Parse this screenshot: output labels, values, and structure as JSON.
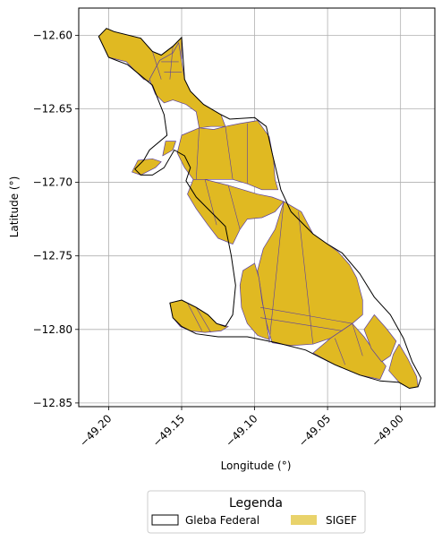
{
  "chart_data": {
    "type": "map",
    "xlabel": "Longitude (°)",
    "ylabel": "Latitude (°)",
    "xlim": [
      -49.2205,
      -48.9765
    ],
    "ylim": [
      -12.8525,
      -12.5815
    ],
    "x_ticks": [
      -49.2,
      -49.15,
      -49.1,
      -49.05,
      -49.0
    ],
    "x_tick_labels": [
      "−49.20",
      "−49.15",
      "−49.10",
      "−49.05",
      "−49.00"
    ],
    "y_ticks": [
      -12.6,
      -12.65,
      -12.7,
      -12.75,
      -12.8,
      -12.85
    ],
    "y_tick_labels": [
      "−12.60",
      "−12.65",
      "−12.70",
      "−12.75",
      "−12.80",
      "−12.85"
    ],
    "grid": true,
    "legend": {
      "title": "Legenda",
      "position": "bottom-center",
      "entries": [
        {
          "name": "Gleba Federal",
          "style": "outline"
        },
        {
          "name": "SIGEF",
          "style": "fill"
        }
      ]
    },
    "colors": {
      "sigef_fill": "#e0b922",
      "sigef_edge": "#5a3fa0",
      "legend_sigef_fill": "#e9d36b",
      "gleba_edge": "#000000",
      "grid": "#b0b0b0"
    },
    "gleba_outline": [
      [
        -49.2068,
        -12.6008
      ],
      [
        -49.2015,
        -12.5953
      ],
      [
        -49.1963,
        -12.5975
      ],
      [
        -49.178,
        -12.602
      ],
      [
        -49.17,
        -12.611
      ],
      [
        -49.164,
        -12.6135
      ],
      [
        -49.156,
        -12.6075
      ],
      [
        -49.15,
        -12.6015
      ],
      [
        -49.148,
        -12.63
      ],
      [
        -49.144,
        -12.638
      ],
      [
        -49.135,
        -12.647
      ],
      [
        -49.123,
        -12.654
      ],
      [
        -49.117,
        -12.657
      ],
      [
        -49.1,
        -12.656
      ],
      [
        -49.092,
        -12.662
      ],
      [
        -49.088,
        -12.68
      ],
      [
        -49.082,
        -12.705
      ],
      [
        -49.075,
        -12.72
      ],
      [
        -49.06,
        -12.735
      ],
      [
        -49.05,
        -12.742
      ],
      [
        -49.04,
        -12.748
      ],
      [
        -49.028,
        -12.762
      ],
      [
        -49.018,
        -12.778
      ],
      [
        -49.007,
        -12.79
      ],
      [
        -48.998,
        -12.806
      ],
      [
        -48.992,
        -12.822
      ],
      [
        -48.986,
        -12.833
      ],
      [
        -48.988,
        -12.839
      ],
      [
        -48.994,
        -12.84
      ],
      [
        -49.001,
        -12.836
      ],
      [
        -49.014,
        -12.835
      ],
      [
        -49.028,
        -12.831
      ],
      [
        -49.045,
        -12.824
      ],
      [
        -49.065,
        -12.814
      ],
      [
        -49.085,
        -12.809
      ],
      [
        -49.105,
        -12.805
      ],
      [
        -49.125,
        -12.805
      ],
      [
        -49.14,
        -12.803
      ],
      [
        -49.15,
        -12.798
      ],
      [
        -49.156,
        -12.792
      ],
      [
        -49.158,
        -12.782
      ],
      [
        -49.15,
        -12.78
      ],
      [
        -49.14,
        -12.785
      ],
      [
        -49.132,
        -12.79
      ],
      [
        -49.126,
        -12.796
      ],
      [
        -49.12,
        -12.798
      ],
      [
        -49.115,
        -12.79
      ],
      [
        -49.113,
        -12.77
      ],
      [
        -49.116,
        -12.75
      ],
      [
        -49.12,
        -12.73
      ],
      [
        -49.13,
        -12.72
      ],
      [
        -49.14,
        -12.71
      ],
      [
        -49.147,
        -12.699
      ],
      [
        -49.144,
        -12.69
      ],
      [
        -49.148,
        -12.682
      ],
      [
        -49.155,
        -12.678
      ],
      [
        -49.162,
        -12.69
      ],
      [
        -49.17,
        -12.695
      ],
      [
        -49.178,
        -12.695
      ],
      [
        -49.182,
        -12.691
      ],
      [
        -49.176,
        -12.685
      ],
      [
        -49.172,
        -12.678
      ],
      [
        -49.16,
        -12.668
      ],
      [
        -49.162,
        -12.654
      ],
      [
        -49.17,
        -12.634
      ],
      [
        -49.187,
        -12.62
      ],
      [
        -49.2,
        -12.615
      ],
      [
        -49.2068,
        -12.6008
      ]
    ],
    "sigef_parcels": [
      {
        "name": "northwest-strip",
        "coords": [
          [
            -49.2068,
            -12.6008
          ],
          [
            -49.2015,
            -12.5953
          ],
          [
            -49.1963,
            -12.5975
          ],
          [
            -49.178,
            -12.602
          ],
          [
            -49.17,
            -12.611
          ],
          [
            -49.164,
            -12.6135
          ],
          [
            -49.156,
            -12.6075
          ],
          [
            -49.15,
            -12.6015
          ],
          [
            -49.15,
            -12.616
          ],
          [
            -49.16,
            -12.624
          ],
          [
            -49.17,
            -12.632
          ],
          [
            -49.176,
            -12.63
          ],
          [
            -49.188,
            -12.618
          ],
          [
            -49.2,
            -12.615
          ]
        ]
      },
      {
        "name": "north-neck",
        "coords": [
          [
            -49.152,
            -12.605
          ],
          [
            -49.148,
            -12.63
          ],
          [
            -49.144,
            -12.638
          ],
          [
            -49.135,
            -12.647
          ],
          [
            -49.123,
            -12.654
          ],
          [
            -49.12,
            -12.662
          ],
          [
            -49.13,
            -12.662
          ],
          [
            -49.138,
            -12.663
          ],
          [
            -49.14,
            -12.652
          ],
          [
            -49.147,
            -12.647
          ],
          [
            -49.156,
            -12.644
          ],
          [
            -49.162,
            -12.646
          ],
          [
            -49.168,
            -12.64
          ],
          [
            -49.172,
            -12.63
          ],
          [
            -49.165,
            -12.617
          ],
          [
            -49.156,
            -12.612
          ]
        ]
      },
      {
        "name": "west-small",
        "coords": [
          [
            -49.163,
            -12.682
          ],
          [
            -49.156,
            -12.678
          ],
          [
            -49.154,
            -12.672
          ],
          [
            -49.161,
            -12.672
          ]
        ]
      },
      {
        "name": "west-lobe",
        "coords": [
          [
            -49.184,
            -12.693
          ],
          [
            -49.18,
            -12.685
          ],
          [
            -49.17,
            -12.684
          ],
          [
            -49.164,
            -12.686
          ],
          [
            -49.168,
            -12.69
          ],
          [
            -49.178,
            -12.695
          ]
        ]
      },
      {
        "name": "central-mid",
        "coords": [
          [
            -49.15,
            -12.668
          ],
          [
            -49.138,
            -12.663
          ],
          [
            -49.128,
            -12.664
          ],
          [
            -49.12,
            -12.662
          ],
          [
            -49.11,
            -12.66
          ],
          [
            -49.098,
            -12.658
          ],
          [
            -49.09,
            -12.669
          ],
          [
            -49.087,
            -12.685
          ],
          [
            -49.086,
            -12.698
          ],
          [
            -49.084,
            -12.705
          ],
          [
            -49.095,
            -12.705
          ],
          [
            -49.105,
            -12.701
          ],
          [
            -49.115,
            -12.698
          ],
          [
            -49.123,
            -12.698
          ],
          [
            -49.132,
            -12.698
          ],
          [
            -49.142,
            -12.698
          ],
          [
            -49.148,
            -12.69
          ],
          [
            -49.153,
            -12.68
          ]
        ]
      },
      {
        "name": "central-south-band",
        "coords": [
          [
            -49.142,
            -12.698
          ],
          [
            -49.134,
            -12.698
          ],
          [
            -49.126,
            -12.7
          ],
          [
            -49.118,
            -12.702
          ],
          [
            -49.108,
            -12.705
          ],
          [
            -49.098,
            -12.708
          ],
          [
            -49.088,
            -12.71
          ],
          [
            -49.08,
            -12.713
          ],
          [
            -49.086,
            -12.72
          ],
          [
            -49.095,
            -12.724
          ],
          [
            -49.105,
            -12.725
          ],
          [
            -49.11,
            -12.732
          ],
          [
            -49.115,
            -12.742
          ],
          [
            -49.125,
            -12.738
          ],
          [
            -49.132,
            -12.729
          ],
          [
            -49.14,
            -12.718
          ],
          [
            -49.146,
            -12.708
          ]
        ]
      },
      {
        "name": "east-large",
        "coords": [
          [
            -49.08,
            -12.713
          ],
          [
            -49.068,
            -12.72
          ],
          [
            -49.06,
            -12.735
          ],
          [
            -49.05,
            -12.742
          ],
          [
            -49.043,
            -12.747
          ],
          [
            -49.035,
            -12.756
          ],
          [
            -49.03,
            -12.765
          ],
          [
            -49.026,
            -12.78
          ],
          [
            -49.026,
            -12.79
          ],
          [
            -49.033,
            -12.796
          ],
          [
            -49.048,
            -12.806
          ],
          [
            -49.06,
            -12.81
          ],
          [
            -49.075,
            -12.811
          ],
          [
            -49.088,
            -12.809
          ],
          [
            -49.092,
            -12.795
          ],
          [
            -49.094,
            -12.785
          ],
          [
            -49.096,
            -12.772
          ],
          [
            -49.098,
            -12.76
          ],
          [
            -49.094,
            -12.745
          ],
          [
            -49.086,
            -12.732
          ]
        ]
      },
      {
        "name": "southwest-loop",
        "coords": [
          [
            -49.156,
            -12.792
          ],
          [
            -49.158,
            -12.782
          ],
          [
            -49.15,
            -12.78
          ],
          [
            -49.14,
            -12.785
          ],
          [
            -49.132,
            -12.79
          ],
          [
            -49.126,
            -12.796
          ],
          [
            -49.118,
            -12.798
          ],
          [
            -49.123,
            -12.801
          ],
          [
            -49.134,
            -12.802
          ],
          [
            -49.144,
            -12.801
          ],
          [
            -49.151,
            -12.798
          ]
        ]
      },
      {
        "name": "south-center",
        "coords": [
          [
            -49.1,
            -12.755
          ],
          [
            -49.108,
            -12.76
          ],
          [
            -49.11,
            -12.77
          ],
          [
            -49.109,
            -12.785
          ],
          [
            -49.105,
            -12.796
          ],
          [
            -49.098,
            -12.804
          ],
          [
            -49.09,
            -12.807
          ],
          [
            -49.092,
            -12.795
          ],
          [
            -49.095,
            -12.78
          ],
          [
            -49.097,
            -12.765
          ]
        ]
      },
      {
        "name": "southeast-band",
        "coords": [
          [
            -49.033,
            -12.796
          ],
          [
            -49.025,
            -12.805
          ],
          [
            -49.018,
            -12.815
          ],
          [
            -49.01,
            -12.825
          ],
          [
            -49.014,
            -12.834
          ],
          [
            -49.028,
            -12.831
          ],
          [
            -49.045,
            -12.824
          ],
          [
            -49.06,
            -12.816
          ],
          [
            -49.048,
            -12.806
          ]
        ]
      },
      {
        "name": "southeast-tip",
        "coords": [
          [
            -49.001,
            -12.81
          ],
          [
            -48.995,
            -12.82
          ],
          [
            -48.989,
            -12.832
          ],
          [
            -48.988,
            -12.839
          ],
          [
            -48.994,
            -12.84
          ],
          [
            -49.001,
            -12.836
          ],
          [
            -49.008,
            -12.828
          ],
          [
            -49.005,
            -12.817
          ]
        ]
      },
      {
        "name": "southeast-edge",
        "coords": [
          [
            -49.018,
            -12.79
          ],
          [
            -49.01,
            -12.799
          ],
          [
            -49.003,
            -12.808
          ],
          [
            -49.007,
            -12.818
          ],
          [
            -49.013,
            -12.822
          ],
          [
            -49.02,
            -12.813
          ],
          [
            -49.025,
            -12.8
          ]
        ]
      }
    ],
    "parcel_boundaries": [
      [
        [
          -49.17,
          -12.611
        ],
        [
          -49.164,
          -12.63
        ]
      ],
      [
        [
          -49.156,
          -12.6075
        ],
        [
          -49.158,
          -12.63
        ]
      ],
      [
        [
          -49.164,
          -12.618
        ],
        [
          -49.152,
          -12.618
        ]
      ],
      [
        [
          -49.162,
          -12.625
        ],
        [
          -49.15,
          -12.625
        ]
      ],
      [
        [
          -49.138,
          -12.663
        ],
        [
          -49.14,
          -12.698
        ]
      ],
      [
        [
          -49.12,
          -12.662
        ],
        [
          -49.115,
          -12.698
        ]
      ],
      [
        [
          -49.105,
          -12.66
        ],
        [
          -49.105,
          -12.701
        ]
      ],
      [
        [
          -49.134,
          -12.698
        ],
        [
          -49.126,
          -12.729
        ]
      ],
      [
        [
          -49.118,
          -12.702
        ],
        [
          -49.11,
          -12.732
        ]
      ],
      [
        [
          -49.08,
          -12.713
        ],
        [
          -49.09,
          -12.809
        ]
      ],
      [
        [
          -49.096,
          -12.785
        ],
        [
          -49.033,
          -12.796
        ]
      ],
      [
        [
          -49.096,
          -12.792
        ],
        [
          -49.04,
          -12.801
        ]
      ],
      [
        [
          -49.07,
          -12.72
        ],
        [
          -49.06,
          -12.81
        ]
      ],
      [
        [
          -49.033,
          -12.796
        ],
        [
          -49.026,
          -12.818
        ]
      ],
      [
        [
          -49.045,
          -12.806
        ],
        [
          -49.038,
          -12.824
        ]
      ],
      [
        [
          -49.146,
          -12.782
        ],
        [
          -49.136,
          -12.801
        ]
      ],
      [
        [
          -49.14,
          -12.785
        ],
        [
          -49.13,
          -12.802
        ]
      ]
    ]
  }
}
